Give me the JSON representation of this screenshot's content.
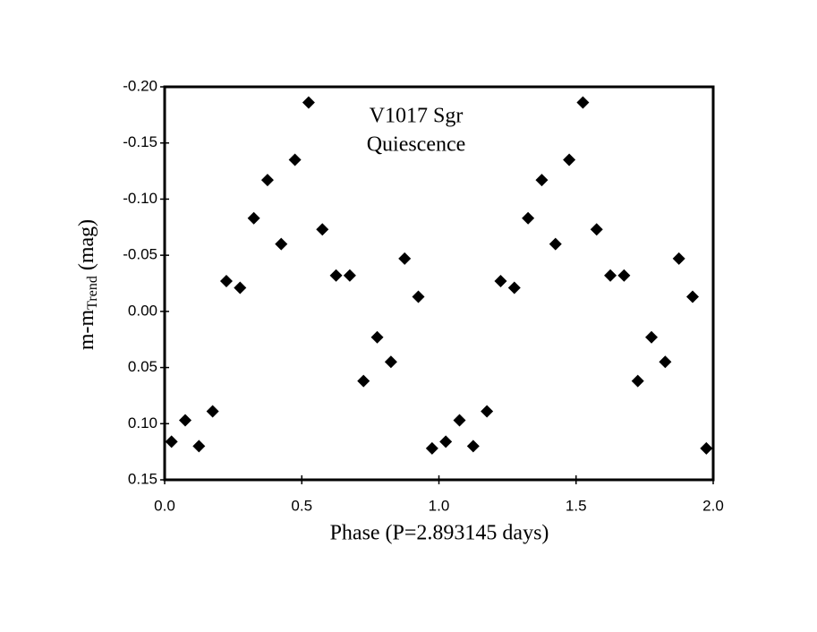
{
  "chart_data": {
    "type": "scatter",
    "annotations": [
      "V1017 Sgr",
      "Quiescence"
    ],
    "xlabel": "Phase (P=2.893145 days)",
    "ylabel": "m-m",
    "ylabel_subscript": "Trend",
    "ylabel_suffix": "(mag)",
    "x": [
      0.025,
      0.075,
      0.125,
      0.175,
      0.225,
      0.275,
      0.325,
      0.375,
      0.425,
      0.475,
      0.525,
      0.575,
      0.625,
      0.675,
      0.725,
      0.775,
      0.825,
      0.875,
      0.925,
      0.975,
      1.025,
      1.075,
      1.125,
      1.175,
      1.225,
      1.275,
      1.325,
      1.375,
      1.425,
      1.475,
      1.525,
      1.575,
      1.625,
      1.675,
      1.725,
      1.775,
      1.825,
      1.875,
      1.925,
      1.975
    ],
    "values": [
      0.116,
      0.097,
      0.12,
      0.089,
      -0.027,
      -0.021,
      -0.083,
      -0.117,
      -0.06,
      -0.135,
      -0.186,
      -0.073,
      -0.032,
      -0.032,
      0.062,
      0.023,
      0.045,
      -0.047,
      -0.013,
      0.122,
      0.116,
      0.097,
      0.12,
      0.089,
      -0.027,
      -0.021,
      -0.083,
      -0.117,
      -0.06,
      -0.135,
      -0.186,
      -0.073,
      -0.032,
      -0.032,
      0.062,
      0.023,
      0.045,
      -0.047,
      -0.013,
      0.122
    ],
    "color": "#000000",
    "marker": "diamond",
    "xlim": [
      0,
      2
    ],
    "xticks": [
      {
        "value": 0,
        "label": "0.0"
      },
      {
        "value": 0.5,
        "label": "0.5"
      },
      {
        "value": 1,
        "label": "1.0"
      },
      {
        "value": 1.5,
        "label": "1.5"
      },
      {
        "value": 2,
        "label": "2.0"
      }
    ],
    "ylim": [
      -0.2,
      0.15
    ],
    "y_inverted": true,
    "yticks": [
      {
        "value": -0.2,
        "label": "-0.20"
      },
      {
        "value": -0.15,
        "label": "-0.15"
      },
      {
        "value": -0.1,
        "label": "-0.10"
      },
      {
        "value": -0.05,
        "label": "-0.05"
      },
      {
        "value": 0,
        "label": "0.00"
      },
      {
        "value": 0.05,
        "label": "0.05"
      },
      {
        "value": 0.1,
        "label": "0.10"
      },
      {
        "value": 0.15,
        "label": "0.15"
      }
    ],
    "grid": false
  }
}
